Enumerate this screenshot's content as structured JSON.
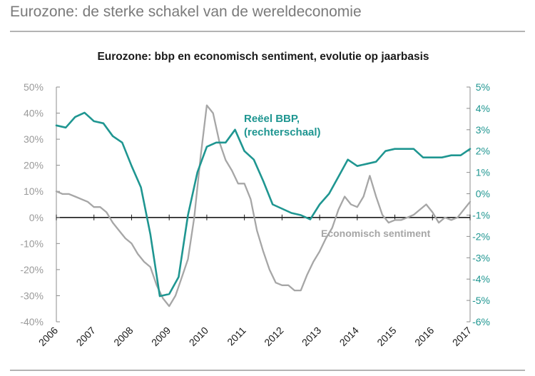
{
  "header": {
    "title": "Eurozone: de sterke schakel van de wereldeconomie"
  },
  "colors": {
    "gdp": "#1f9691",
    "sentiment": "#a6a6a6",
    "axis": "#1a1a1a",
    "rule": "#b3b3b3"
  },
  "chart_data": {
    "type": "line",
    "title": "Eurozone: bbp en economisch sentiment, evolutie op jaarbasis",
    "x_range": [
      "2006-01",
      "2017-01"
    ],
    "x_ticks": [
      "2006",
      "2007",
      "2008",
      "2009",
      "2010",
      "2011",
      "2012",
      "2013",
      "2014",
      "2015",
      "2016",
      "2017"
    ],
    "y_left": {
      "range": [
        -40,
        50
      ],
      "ticks": [
        "50%",
        "40%",
        "30%",
        "20%",
        "10%",
        "0%",
        "-10%",
        "-20%",
        "-30%",
        "-40%"
      ]
    },
    "y_right": {
      "range": [
        -6,
        5
      ],
      "ticks": [
        "5%",
        "4%",
        "3%",
        "2%",
        "1%",
        "0%",
        "-1%",
        "-2%",
        "-3%",
        "-4%",
        "-5%",
        "-6%"
      ]
    },
    "annotations": {
      "gdp_line1": "Reëel BBP,",
      "gdp_line2": "(rechterschaal)",
      "sentiment": "Economisch sentiment"
    },
    "series": [
      {
        "name": "Reëel BBP",
        "axis": "right",
        "x": [
          "2006-01",
          "2006-04",
          "2006-07",
          "2006-10",
          "2007-01",
          "2007-04",
          "2007-07",
          "2007-10",
          "2008-01",
          "2008-04",
          "2008-07",
          "2008-10",
          "2009-01",
          "2009-04",
          "2009-07",
          "2009-10",
          "2010-01",
          "2010-04",
          "2010-07",
          "2010-10",
          "2011-01",
          "2011-04",
          "2011-07",
          "2011-10",
          "2012-01",
          "2012-04",
          "2012-07",
          "2012-10",
          "2013-01",
          "2013-04",
          "2013-07",
          "2013-10",
          "2014-01",
          "2014-04",
          "2014-07",
          "2014-10",
          "2015-01",
          "2015-04",
          "2015-07",
          "2015-10",
          "2016-01",
          "2016-04",
          "2016-07",
          "2016-10",
          "2017-01"
        ],
        "values": [
          3.2,
          3.1,
          3.6,
          3.8,
          3.4,
          3.3,
          2.7,
          2.4,
          1.3,
          0.3,
          -1.9,
          -4.8,
          -4.7,
          -3.9,
          -1.0,
          1.0,
          2.2,
          2.4,
          2.4,
          3.0,
          2.0,
          1.6,
          0.6,
          -0.5,
          -0.7,
          -0.9,
          -1.0,
          -1.2,
          -0.5,
          0.0,
          0.8,
          1.6,
          1.3,
          1.4,
          1.5,
          2.0,
          2.1,
          2.1,
          2.1,
          1.7,
          1.7,
          1.7,
          1.8,
          1.8,
          2.1
        ]
      },
      {
        "name": "Economisch sentiment",
        "axis": "left",
        "x": [
          "2006-01",
          "2006-03",
          "2006-05",
          "2006-07",
          "2006-09",
          "2006-11",
          "2007-01",
          "2007-03",
          "2007-05",
          "2007-07",
          "2007-09",
          "2007-11",
          "2008-01",
          "2008-03",
          "2008-05",
          "2008-07",
          "2008-09",
          "2008-11",
          "2009-01",
          "2009-03",
          "2009-05",
          "2009-07",
          "2009-09",
          "2009-11",
          "2010-01",
          "2010-03",
          "2010-05",
          "2010-07",
          "2010-09",
          "2010-11",
          "2011-01",
          "2011-03",
          "2011-05",
          "2011-07",
          "2011-09",
          "2011-11",
          "2012-01",
          "2012-03",
          "2012-05",
          "2012-07",
          "2012-09",
          "2012-11",
          "2013-01",
          "2013-03",
          "2013-05",
          "2013-07",
          "2013-09",
          "2013-11",
          "2014-01",
          "2014-03",
          "2014-05",
          "2014-07",
          "2014-09",
          "2014-11",
          "2015-01",
          "2015-03",
          "2015-05",
          "2015-07",
          "2015-09",
          "2015-11",
          "2016-01",
          "2016-03",
          "2016-05",
          "2016-07",
          "2016-09",
          "2016-11",
          "2017-01"
        ],
        "values": [
          10,
          9,
          9,
          8,
          7,
          6,
          4,
          4,
          2,
          -2,
          -5,
          -8,
          -10,
          -14,
          -17,
          -19,
          -26,
          -31,
          -34,
          -30,
          -23,
          -16,
          0,
          23,
          43,
          40,
          29,
          22,
          18,
          13,
          13,
          7,
          -5,
          -13,
          -20,
          -25,
          -26,
          -26,
          -28,
          -28,
          -22,
          -17,
          -13,
          -8,
          -4,
          3,
          8,
          5,
          4,
          8,
          16,
          8,
          1,
          -2,
          -1,
          -1,
          0,
          1,
          3,
          5,
          2,
          -2,
          0,
          -1,
          0,
          3,
          6
        ]
      }
    ]
  }
}
